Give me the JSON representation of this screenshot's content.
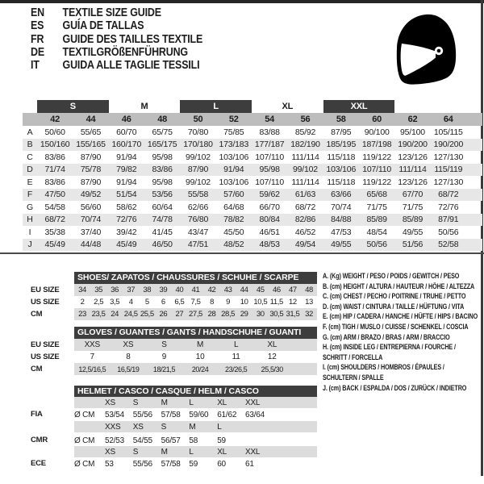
{
  "colors": {
    "dark_bar": "#3d3d3d",
    "header_band": "#bdbdbd",
    "alt_row": "#e7e7e7",
    "sub_band": "#dcdcdc"
  },
  "languages": [
    {
      "code": "EN",
      "label": "TEXTILE SIZE GUIDE"
    },
    {
      "code": "ES",
      "label": "GUÍA DE TALLAS"
    },
    {
      "code": "FR",
      "label": "GUIDE DES TAILLES TEXTILE"
    },
    {
      "code": "DE",
      "label": "TEXTILGRÖßENFÜHRUNG"
    },
    {
      "code": "IT",
      "label": "GUIDA ALLE TAGLIE TESSILI"
    }
  ],
  "icons": {
    "helmet": "racing-helmet-icon"
  },
  "size_table": {
    "groups": [
      {
        "label": "S",
        "dark": true
      },
      {
        "label": "M",
        "dark": false
      },
      {
        "label": "L",
        "dark": true
      },
      {
        "label": "XL",
        "dark": false
      },
      {
        "label": "XXL",
        "dark": true
      }
    ],
    "sizes": [
      "42",
      "44",
      "46",
      "48",
      "50",
      "52",
      "54",
      "56",
      "58",
      "60",
      "62",
      "64"
    ],
    "rows": [
      {
        "label": "A",
        "values": [
          "50/60",
          "55/65",
          "60/70",
          "65/75",
          "70/80",
          "75/85",
          "83/88",
          "85/92",
          "87/95",
          "90/100",
          "95/100",
          "105/115"
        ]
      },
      {
        "label": "B",
        "values": [
          "150/160",
          "155/165",
          "160/170",
          "165/175",
          "170/180",
          "173/183",
          "177/187",
          "182/190",
          "185/195",
          "187/198",
          "190/200",
          "190/200"
        ]
      },
      {
        "label": "C",
        "values": [
          "83/86",
          "87/90",
          "91/94",
          "95/98",
          "99/102",
          "103/106",
          "107/110",
          "111/114",
          "115/118",
          "119/122",
          "123/126",
          "127/130"
        ]
      },
      {
        "label": "D",
        "values": [
          "71/74",
          "75/78",
          "79/82",
          "83/86",
          "87/90",
          "91/94",
          "95/98",
          "99/102",
          "103/106",
          "107/110",
          "111/114",
          "115/119"
        ]
      },
      {
        "label": "E",
        "values": [
          "83/86",
          "87/90",
          "91/94",
          "95/98",
          "99/102",
          "103/106",
          "107/110",
          "111/114",
          "115/118",
          "119/122",
          "123/126",
          "127/130"
        ]
      },
      {
        "label": "F",
        "values": [
          "47/50",
          "49/52",
          "51/54",
          "53/56",
          "55/58",
          "57/60",
          "59/62",
          "61/63",
          "63/66",
          "65/68",
          "67/70",
          "68/72"
        ]
      },
      {
        "label": "G",
        "values": [
          "54/58",
          "56/60",
          "58/62",
          "60/64",
          "62/66",
          "64/68",
          "66/70",
          "68/72",
          "70/74",
          "71/75",
          "71/75",
          "72/76"
        ]
      },
      {
        "label": "H",
        "values": [
          "68/72",
          "70/74",
          "72/76",
          "74/78",
          "76/80",
          "78/82",
          "80/84",
          "82/86",
          "84/88",
          "85/89",
          "85/89",
          "87/91"
        ]
      },
      {
        "label": "I",
        "values": [
          "35/38",
          "37/40",
          "39/42",
          "41/45",
          "43/47",
          "45/50",
          "46/51",
          "46/52",
          "47/53",
          "48/54",
          "49/55",
          "50/56"
        ]
      },
      {
        "label": "J",
        "values": [
          "45/49",
          "44/48",
          "45/49",
          "46/50",
          "47/51",
          "48/52",
          "48/53",
          "49/54",
          "49/55",
          "50/56",
          "51/56",
          "52/58"
        ]
      }
    ]
  },
  "shoes": {
    "title": "SHOES/ ZAPATOS / CHAUSSURES / SCHUHE / SCARPE",
    "rows": [
      {
        "label": "EU SIZE",
        "values": [
          "34",
          "35",
          "36",
          "37",
          "38",
          "39",
          "40",
          "41",
          "42",
          "43",
          "44",
          "45",
          "46",
          "47",
          "48"
        ]
      },
      {
        "label": "US SIZE",
        "values": [
          "2",
          "2,5",
          "3,5",
          "4",
          "5",
          "6",
          "6,5",
          "7,5",
          "8",
          "9",
          "10",
          "10,5",
          "11,5",
          "12",
          "13"
        ]
      },
      {
        "label": "CM",
        "values": [
          "23",
          "23,5",
          "24",
          "24,5",
          "25,5",
          "26",
          "27",
          "27,5",
          "28",
          "28,5",
          "29",
          "30",
          "30,5",
          "31,5",
          "32"
        ]
      }
    ]
  },
  "gloves": {
    "title": "GLOVES / GUANTES / GANTS / HANDSCHUHE / GUANTI",
    "rows": [
      {
        "label": "EU SIZE",
        "values": [
          "XXS",
          "XS",
          "S",
          "M",
          "L",
          "XL"
        ]
      },
      {
        "label": "US SIZE",
        "values": [
          "7",
          "8",
          "9",
          "10",
          "11",
          "12"
        ]
      },
      {
        "label": "CM",
        "values": [
          "12,5/16,5",
          "16,5/19",
          "18/21,5",
          "20/24",
          "23/26,5",
          "25,5/30"
        ]
      }
    ]
  },
  "helmet": {
    "title": "HELMET / CASCO / CASQUE / HELM / CASCO",
    "bands": [
      {
        "label": "FIA",
        "unit": "Ø CM",
        "sizes": [
          "XS",
          "S",
          "M",
          "L",
          "XL",
          "XXL"
        ],
        "values": [
          "53/54",
          "55/56",
          "57/58",
          "59/60",
          "61/62",
          "63/64"
        ]
      },
      {
        "label": "CMR",
        "unit": "Ø CM",
        "sizes": [
          "XXS",
          "XS",
          "S",
          "M",
          "L"
        ],
        "values": [
          "52/53",
          "54/55",
          "56/57",
          "58",
          "59"
        ]
      },
      {
        "label": "ECE",
        "unit": "Ø CM",
        "sizes": [
          "XS",
          "S",
          "M",
          "L",
          "XL",
          "XXL"
        ],
        "values": [
          "53",
          "55/56",
          "57/58",
          "59",
          "60",
          "61"
        ]
      }
    ]
  },
  "legend": {
    "lines": [
      "A. (Kg) WEIGHT / PESO / POIDS / GEWITCH / PESO",
      "B. (cm) HEIGHT / ALTURA / HAUTEUR / HÖHE / ALTEZZA",
      "C. (cm) CHEST / PECHO / POITRINE / TRUHE / PETTO",
      "D. (cm) WAIST / CINTURA / TAILLE / HÜFTUNG / VITA",
      "E. (cm) HIP / CADERA / HANCHE / HÜFTE / HIPS / BACINO",
      "F. (cm) TIGH / MUSLO / CUISSE / SCHENKEL / COSCIA",
      "G. (cm) ARM / BRAZO / BRAS / ARM / BRACCIO",
      "H. (cm) INSIDE LEG / ENTREPIERNA / FOURCHE /",
      "SCHRITT / FORCELLA",
      "I. (cm) SHOULDERS / HOMBROS / ÉPAULES /",
      "SCHULTERN / SPALLE",
      "J. (cm) BACK / ESPALDA / DOS / ZURÜCK / INDIETRO"
    ]
  }
}
